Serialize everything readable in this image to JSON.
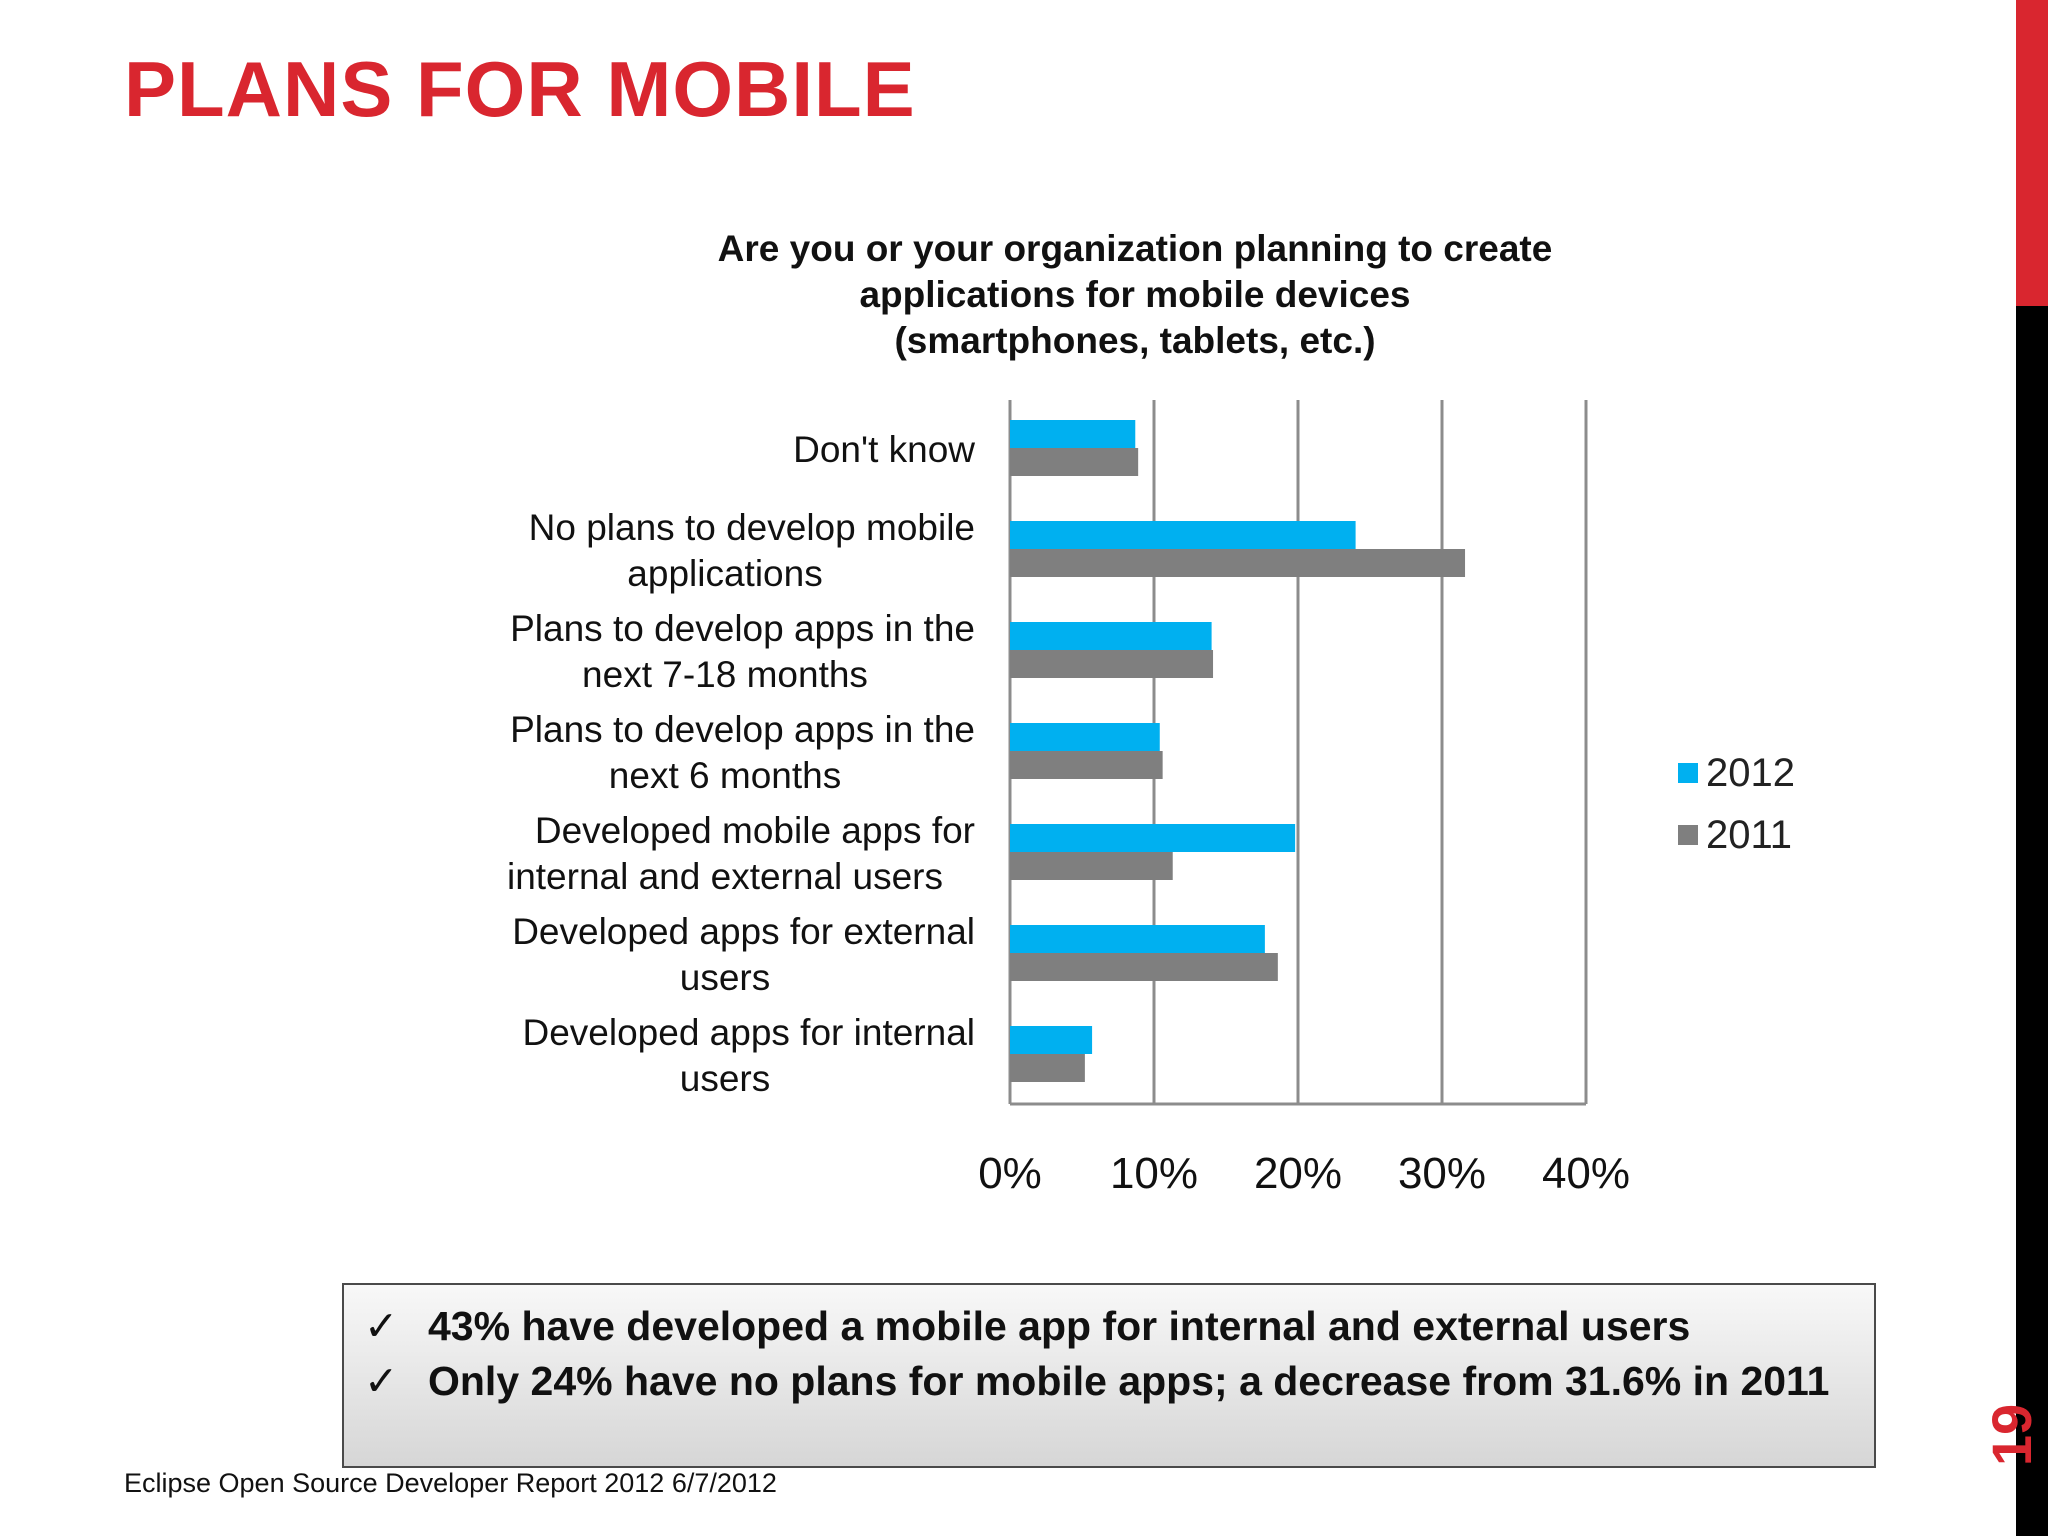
{
  "slide": {
    "title": "PLANS FOR MOBILE",
    "page_number": "19",
    "footer": "Eclipse Open Source Developer Report 2012   6/7/2012",
    "accent_color": "#d9262f"
  },
  "callout": {
    "bullets": [
      "43% have developed a mobile app for internal and external users",
      "Only 24% have no plans for mobile apps; a decrease from 31.6% in 2011"
    ]
  },
  "chart_data": {
    "type": "bar",
    "orientation": "horizontal",
    "title": "Are you or your organization planning to create\napplications for mobile devices\n(smartphones, tablets, etc.)",
    "categories": [
      "Don't know",
      "No plans to develop mobile applications",
      "Plans to develop apps in the next 7-18 months",
      "Plans to develop apps in the next 6 months",
      "Developed mobile apps for internal and external users",
      "Developed apps for external users",
      "Developed apps for  internal users"
    ],
    "category_lines": [
      [
        "Don't know"
      ],
      [
        "No plans to develop mobile",
        "applications"
      ],
      [
        "Plans to develop apps in the",
        "next 7-18 months"
      ],
      [
        "Plans to develop apps in the",
        "next 6 months"
      ],
      [
        "Developed mobile apps for",
        "internal and external users"
      ],
      [
        "Developed apps for external",
        "users"
      ],
      [
        "Developed apps for  internal",
        "users"
      ]
    ],
    "series": [
      {
        "name": "2012",
        "color": "#00b0f0",
        "values": [
          8.7,
          24.0,
          14.0,
          10.4,
          19.8,
          17.7,
          5.7
        ]
      },
      {
        "name": "2011",
        "color": "#7f7f7f",
        "values": [
          8.9,
          31.6,
          14.1,
          10.6,
          11.3,
          18.6,
          5.2
        ]
      }
    ],
    "xlim": [
      0,
      40
    ],
    "xticks": [
      "0%",
      "10%",
      "20%",
      "30%",
      "40%"
    ],
    "grid": true,
    "legend": "right"
  }
}
